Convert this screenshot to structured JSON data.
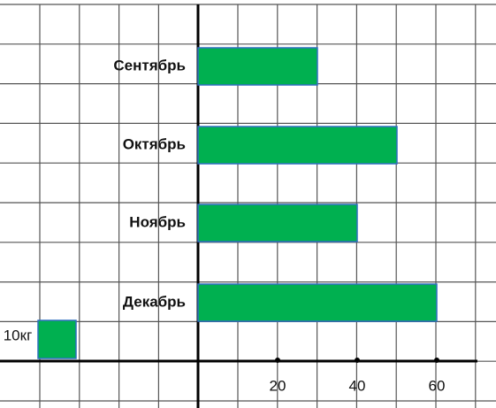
{
  "chart_data": {
    "type": "barh",
    "categories": [
      "Сентябрь",
      "Октябрь",
      "Ноябрь",
      "Декабрь"
    ],
    "values": [
      30,
      50,
      40,
      60
    ],
    "color": "#00b050",
    "xlim": [
      0,
      70
    ],
    "xticks": [
      20,
      40,
      60
    ],
    "key_label": "10кг"
  }
}
